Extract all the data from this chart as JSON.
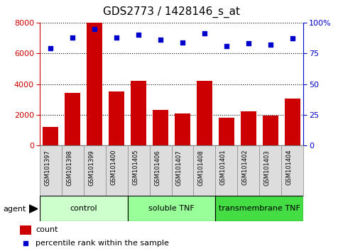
{
  "title": "GDS2773 / 1428146_s_at",
  "samples": [
    "GSM101397",
    "GSM101398",
    "GSM101399",
    "GSM101400",
    "GSM101405",
    "GSM101406",
    "GSM101407",
    "GSM101408",
    "GSM101401",
    "GSM101402",
    "GSM101403",
    "GSM101404"
  ],
  "counts": [
    1200,
    3450,
    8000,
    3500,
    4200,
    2300,
    2100,
    4200,
    1800,
    2250,
    1950,
    3050
  ],
  "percentile_ranks": [
    79,
    88,
    95,
    88,
    90,
    86,
    84,
    91,
    81,
    83,
    82,
    87
  ],
  "bar_color": "#cc0000",
  "scatter_color": "#0000cc",
  "ylim_left": [
    0,
    8000
  ],
  "ylim_right": [
    0,
    100
  ],
  "yticks_left": [
    0,
    2000,
    4000,
    6000,
    8000
  ],
  "yticks_right": [
    0,
    25,
    50,
    75,
    100
  ],
  "yticklabels_right": [
    "0",
    "25",
    "50",
    "75",
    "100%"
  ],
  "groups": [
    {
      "label": "control",
      "boundaries": [
        -0.5,
        3.5
      ],
      "color": "#ccffcc"
    },
    {
      "label": "soluble TNF",
      "boundaries": [
        3.5,
        7.5
      ],
      "color": "#99ff99"
    },
    {
      "label": "transmembrane TNF",
      "boundaries": [
        7.5,
        11.5
      ],
      "color": "#44dd44"
    }
  ],
  "agent_label": "agent",
  "legend_items": [
    {
      "color": "#cc0000",
      "label": "count"
    },
    {
      "color": "#0000cc",
      "label": "percentile rank within the sample"
    }
  ],
  "grid_color": "#000000",
  "background_color": "#ffffff",
  "title_color": "#000000",
  "title_fontsize": 11,
  "tick_label_color_left": "#cc0000",
  "tick_label_color_right": "#0000cc",
  "xlabel_box_color": "#dddddd",
  "xlabel_box_edge": "#888888"
}
